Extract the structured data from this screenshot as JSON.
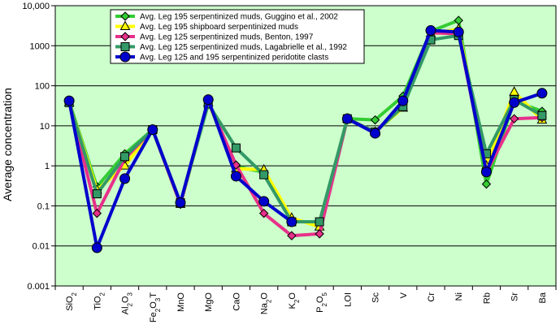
{
  "chart_data": {
    "type": "line",
    "ylabel": "Average concentration",
    "yscale": "log",
    "ylim": [
      0.001,
      10000
    ],
    "y_ticks": [
      "0.001",
      "0.01",
      "0.1",
      "1",
      "10",
      "100",
      "1000",
      "10,000"
    ],
    "categories": [
      {
        "base": "SiO",
        "sub": "2"
      },
      {
        "base": "TiO",
        "sub": "2"
      },
      {
        "base": "Al",
        "sub": "2",
        "rest": "O",
        "sub2": "3"
      },
      {
        "base": "Fe",
        "sub": "2",
        "rest": "O",
        "sub2": "3",
        "tail": "T"
      },
      {
        "base": "MnO"
      },
      {
        "base": "MgO"
      },
      {
        "base": "CaO"
      },
      {
        "base": "Na",
        "sub": "2",
        "rest": "O"
      },
      {
        "base": "K",
        "sub": "2",
        "rest": "O"
      },
      {
        "base": "P",
        "sub": "2",
        "rest": "O",
        "sub2": "5"
      },
      {
        "base": "LOI"
      },
      {
        "base": "Sc"
      },
      {
        "base": "V"
      },
      {
        "base": "Cr"
      },
      {
        "base": "Ni"
      },
      {
        "base": "Rb"
      },
      {
        "base": "Sr"
      },
      {
        "base": "Ba"
      }
    ],
    "grid": true,
    "legend_position": "top-left",
    "series": [
      {
        "name": "Avg. Leg 195 serpentinized muds, Guggino et al., 2002",
        "color": "#33cc33",
        "marker": "diamond",
        "values": [
          40,
          0.3,
          2.0,
          8,
          0.11,
          40,
          0.95,
          0.7,
          0.045,
          0.035,
          15,
          14,
          55,
          2300,
          4300,
          0.35,
          42,
          23
        ]
      },
      {
        "name": "Avg. Leg 195 shipboard serpentinized muds",
        "color": "#ffff00",
        "marker": "triangle",
        "values": [
          38,
          0.25,
          1.0,
          8,
          0.11,
          38,
          0.85,
          0.8,
          0.05,
          0.03,
          15,
          7,
          28,
          2000,
          2600,
          1.0,
          70,
          14
        ]
      },
      {
        "name": "Avg. Leg 125 serpentinized muds, Benton, 1997",
        "color": "#e8308a",
        "marker": "diamond",
        "values": [
          40,
          0.065,
          1.5,
          8,
          0.11,
          40,
          1.05,
          0.065,
          0.018,
          0.02,
          15,
          7,
          35,
          2100,
          2000,
          0.7,
          15,
          16
        ]
      },
      {
        "name": "Avg. Leg 125 serpentinized muds, Lagabrielle et al., 1992",
        "color": "#339966",
        "marker": "square",
        "values": [
          38,
          0.2,
          1.7,
          8,
          0.12,
          35,
          2.8,
          0.6,
          0.04,
          0.04,
          15,
          7,
          30,
          1400,
          1800,
          2.0,
          45,
          18
        ]
      },
      {
        "name": "Avg. Leg 125 and 195 serpentinized peridotite clasts",
        "color": "#0000cc",
        "marker": "circle",
        "values": [
          42,
          0.009,
          0.48,
          8,
          0.12,
          45,
          0.55,
          0.13,
          0.04,
          null,
          15,
          6.5,
          42,
          2400,
          2200,
          0.7,
          38,
          65
        ]
      }
    ]
  }
}
